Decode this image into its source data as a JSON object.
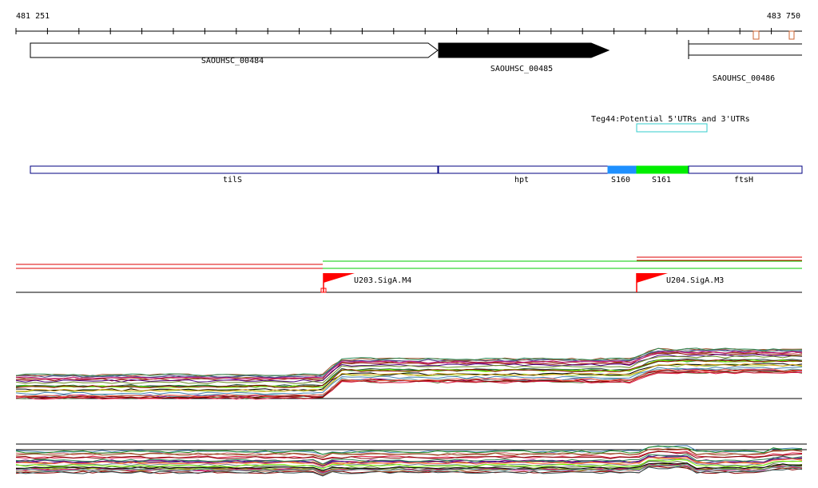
{
  "ruler": {
    "start": "481 251",
    "end": "483 750"
  },
  "genes": [
    {
      "id": "SAOUHSC_00484",
      "label": "SAOUHSC_00484",
      "fill": "#ffffff"
    },
    {
      "id": "SAOUHSC_00485",
      "label": "SAOUHSC_00485",
      "fill": "#000000"
    },
    {
      "id": "SAOUHSC_00486",
      "label": "SAOUHSC_00486",
      "fill": "#ffffff"
    }
  ],
  "utr_track": {
    "label": "Teg44:Potential 5'UTRs and 3'UTRs",
    "color": "#33cccc"
  },
  "regions": [
    {
      "label": "tilS",
      "color": "#ffffff"
    },
    {
      "label": "hpt",
      "color": "#ffffff"
    },
    {
      "label": "S160",
      "color": "#1e90ff"
    },
    {
      "label": "S161",
      "color": "#00ee00"
    },
    {
      "label": "ftsH",
      "color": "#ffffff"
    }
  ],
  "promoters": [
    {
      "label": "U203.SigA.M4",
      "color": "#ff0000"
    },
    {
      "label": "U204.SigA.M3",
      "color": "#ff0000"
    }
  ],
  "track_colors": {
    "outline": "#000080",
    "red": "#dd0000",
    "green": "#00cc00",
    "marker": "#cc6633"
  }
}
